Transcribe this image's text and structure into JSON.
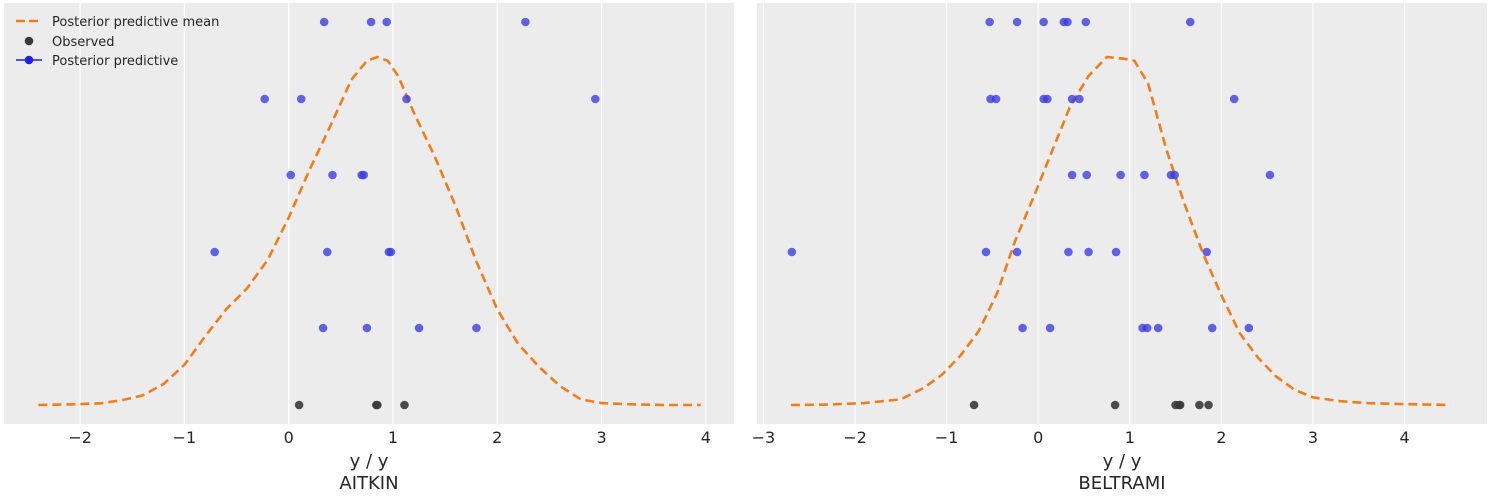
{
  "legend": {
    "placement": "top-left",
    "items": [
      {
        "label": "Posterior predictive mean",
        "style": "dashed-line",
        "color": "#f07d1a"
      },
      {
        "label": "Observed",
        "style": "dot",
        "color": "#3a3a3a"
      },
      {
        "label": "Posterior predictive",
        "style": "line-dot",
        "color": "#2a2ae8"
      }
    ]
  },
  "colors": {
    "background": "#ececec",
    "grid": "#ffffff",
    "mean": "#f07d1a",
    "observed": "#3a3a3a",
    "predictive": "#3a3ae0"
  },
  "chart_data": [
    {
      "type": "scatter",
      "title": "AITKIN",
      "xlabel": "y / y",
      "xlim": [
        -2.73,
        4.27
      ],
      "xticks": [
        -2,
        -1,
        0,
        1,
        2,
        3,
        4
      ],
      "xtick_labels": [
        "−2",
        "−1",
        "0",
        "1",
        "2",
        "3",
        "4"
      ],
      "grid": "vertical",
      "observed": [
        0.1,
        0.84,
        0.85,
        1.11
      ],
      "posterior_predictive_rows": [
        [
          0.34,
          0.79,
          0.94,
          2.27
        ],
        [
          -0.23,
          0.12,
          1.13,
          2.94
        ],
        [
          0.02,
          0.42,
          0.7,
          0.72
        ],
        [
          -0.71,
          0.37,
          0.96,
          0.98
        ],
        [
          0.33,
          0.75,
          1.25,
          1.8
        ]
      ],
      "mean_curve": {
        "x": [
          -2.4,
          -2.1,
          -1.8,
          -1.6,
          -1.4,
          -1.2,
          -1.0,
          -0.8,
          -0.6,
          -0.4,
          -0.2,
          0.0,
          0.2,
          0.4,
          0.6,
          0.75,
          0.85,
          0.95,
          1.05,
          1.2,
          1.4,
          1.6,
          1.8,
          2.0,
          2.2,
          2.4,
          2.6,
          2.8,
          3.0,
          3.2,
          3.4,
          3.6,
          3.95
        ],
        "y": [
          0.0,
          0.003,
          0.009,
          0.025,
          0.05,
          0.11,
          0.21,
          0.36,
          0.5,
          0.61,
          0.76,
          0.98,
          1.23,
          1.46,
          1.7,
          1.8,
          1.82,
          1.8,
          1.72,
          1.53,
          1.3,
          1.04,
          0.75,
          0.5,
          0.32,
          0.2,
          0.1,
          0.03,
          0.01,
          0.005,
          0.002,
          0.0,
          0.0
        ]
      }
    },
    {
      "type": "scatter",
      "title": "BELTRAMI",
      "xlabel": "y / y",
      "xlim": [
        -3.07,
        4.9
      ],
      "xticks": [
        -3,
        -2,
        -1,
        0,
        1,
        2,
        3,
        4
      ],
      "xtick_labels": [
        "−3",
        "−2",
        "−1",
        "0",
        "1",
        "2",
        "3",
        "4"
      ],
      "grid": "vertical",
      "observed": [
        -0.7,
        0.84,
        1.5,
        1.54,
        1.55,
        1.76,
        1.86
      ],
      "posterior_predictive_rows": [
        [
          -0.53,
          -0.23,
          0.06,
          0.28,
          0.32,
          0.52,
          1.66
        ],
        [
          -0.52,
          -0.46,
          0.06,
          0.1,
          0.37,
          0.45,
          2.14
        ],
        [
          0.37,
          0.53,
          0.9,
          1.16,
          1.45,
          1.49,
          2.53
        ],
        [
          -2.69,
          -0.57,
          -0.23,
          0.33,
          0.55,
          0.85,
          1.84
        ],
        [
          -0.17,
          0.13,
          1.14,
          1.19,
          1.31,
          1.9,
          2.3
        ]
      ],
      "mean_curve": {
        "x": [
          -2.7,
          -2.3,
          -1.9,
          -1.5,
          -1.25,
          -1.05,
          -0.85,
          -0.65,
          -0.45,
          -0.25,
          -0.05,
          0.15,
          0.35,
          0.55,
          0.75,
          0.95,
          1.05,
          1.2,
          1.4,
          1.6,
          1.8,
          2.0,
          2.2,
          2.4,
          2.6,
          2.8,
          3.0,
          3.3,
          3.6,
          4.0,
          4.5
        ],
        "y": [
          0.0,
          0.002,
          0.01,
          0.03,
          0.09,
          0.16,
          0.26,
          0.39,
          0.59,
          0.87,
          1.1,
          1.34,
          1.58,
          1.74,
          1.84,
          1.83,
          1.82,
          1.7,
          1.35,
          1.06,
          0.8,
          0.58,
          0.38,
          0.25,
          0.15,
          0.08,
          0.04,
          0.02,
          0.01,
          0.005,
          0.0
        ]
      }
    }
  ]
}
